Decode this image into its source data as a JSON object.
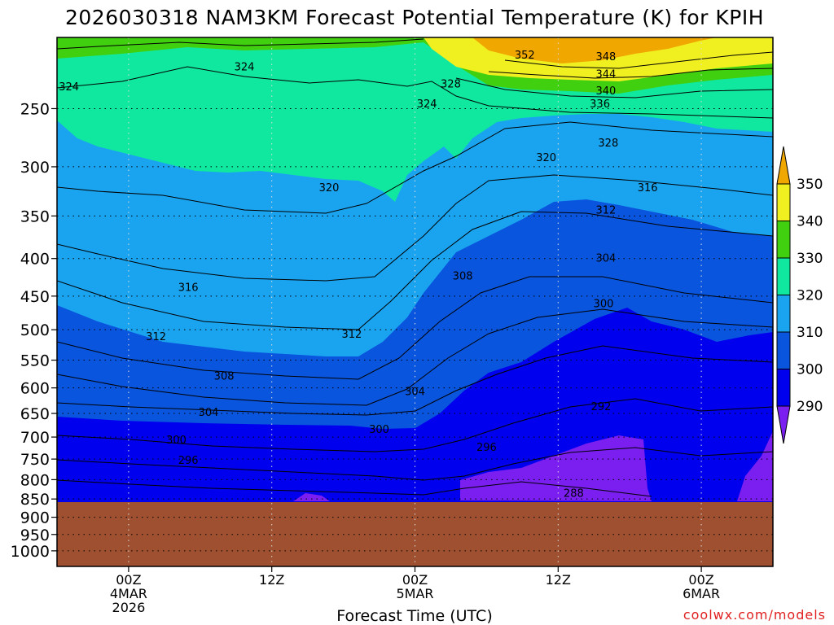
{
  "chart_data": {
    "type": "contour",
    "title": "2026030318 NAM3KM Forecast Potential Temperature (K) for KPIH",
    "xlabel": "Forecast Time (UTC)",
    "ylabel": "",
    "y_axis": "pressure (hPa)",
    "ylim": [
      1050,
      200
    ],
    "xlim_hours": [
      -6,
      54
    ],
    "y_ticks": [
      250,
      300,
      350,
      400,
      450,
      500,
      550,
      600,
      650,
      700,
      750,
      800,
      850,
      900,
      950,
      1000
    ],
    "x_ticks": [
      {
        "hour": 0,
        "lines": [
          "00Z",
          "4MAR",
          "2026"
        ]
      },
      {
        "hour": 12,
        "lines": [
          "12Z"
        ]
      },
      {
        "hour": 24,
        "lines": [
          "00Z",
          "5MAR"
        ]
      },
      {
        "hour": 36,
        "lines": [
          "12Z"
        ]
      },
      {
        "hour": 48,
        "lines": [
          "00Z",
          "6MAR"
        ]
      }
    ],
    "colorbar": {
      "levels": [
        290,
        300,
        310,
        320,
        330,
        340,
        350
      ],
      "labels": [
        "290",
        "300",
        "310",
        "320",
        "330",
        "340",
        "350"
      ],
      "colors": [
        "#7a1ff0",
        "#0000ee",
        "#0a55dd",
        "#1aa4f0",
        "#10e8a0",
        "#40d010",
        "#f0f020",
        "#f0a800"
      ]
    },
    "ground_color": "#9e5030",
    "contour_labels": [
      {
        "text": "352",
        "hour": 33.2,
        "p": 211
      },
      {
        "text": "348",
        "hour": 40.0,
        "p": 212
      },
      {
        "text": "344",
        "hour": 40.0,
        "p": 224
      },
      {
        "text": "340",
        "hour": 40.0,
        "p": 236
      },
      {
        "text": "336",
        "hour": 39.5,
        "p": 246
      },
      {
        "text": "328",
        "hour": 27.0,
        "p": 231
      },
      {
        "text": "328",
        "hour": 40.2,
        "p": 278
      },
      {
        "text": "324",
        "hour": 9.7,
        "p": 219
      },
      {
        "text": "324",
        "hour": -5.0,
        "p": 233
      },
      {
        "text": "324",
        "hour": 25.0,
        "p": 246
      },
      {
        "text": "320",
        "hour": 35.0,
        "p": 291
      },
      {
        "text": "320",
        "hour": 16.8,
        "p": 320
      },
      {
        "text": "316",
        "hour": 43.5,
        "p": 320
      },
      {
        "text": "316",
        "hour": 5.0,
        "p": 437
      },
      {
        "text": "312",
        "hour": 40.0,
        "p": 343
      },
      {
        "text": "312",
        "hour": 2.3,
        "p": 510
      },
      {
        "text": "312",
        "hour": 18.7,
        "p": 506
      },
      {
        "text": "308",
        "hour": 28.0,
        "p": 422
      },
      {
        "text": "308",
        "hour": 8.0,
        "p": 577
      },
      {
        "text": "304",
        "hour": 40.0,
        "p": 399
      },
      {
        "text": "304",
        "hour": 24.0,
        "p": 606
      },
      {
        "text": "304",
        "hour": 6.7,
        "p": 647
      },
      {
        "text": "300",
        "hour": 39.8,
        "p": 460
      },
      {
        "text": "300",
        "hour": 4.0,
        "p": 705
      },
      {
        "text": "300",
        "hour": 21.0,
        "p": 682
      },
      {
        "text": "296",
        "hour": 30.0,
        "p": 722
      },
      {
        "text": "296",
        "hour": 5.0,
        "p": 752
      },
      {
        "text": "292",
        "hour": 39.6,
        "p": 635
      },
      {
        "text": "288",
        "hour": 37.3,
        "p": 833
      }
    ]
  },
  "credit": "coolwx.com/models"
}
